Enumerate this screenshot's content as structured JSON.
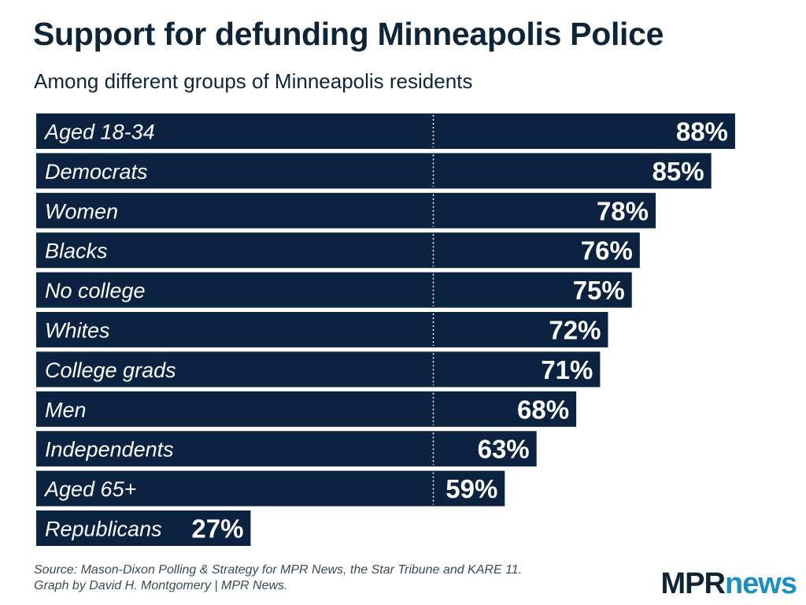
{
  "title": "Support for defunding Minneapolis Police",
  "subtitle": "Among different groups of Minneapolis residents",
  "chart_data": {
    "type": "bar",
    "orientation": "horizontal",
    "title": "Support for defunding Minneapolis Police",
    "subtitle": "Among different groups of Minneapolis residents",
    "categories": [
      "Aged 18-34",
      "Democrats",
      "Women",
      "Blacks",
      "No college",
      "Whites",
      "College grads",
      "Men",
      "Independents",
      "Aged 65+",
      "Republicans"
    ],
    "values": [
      88,
      85,
      78,
      76,
      75,
      72,
      71,
      68,
      63,
      59,
      27
    ],
    "labels": [
      "88%",
      "85%",
      "78%",
      "76%",
      "75%",
      "72%",
      "71%",
      "68%",
      "63%",
      "59%",
      "27%"
    ],
    "unit": "%",
    "xlim": [
      0,
      100
    ],
    "reference_line": 50,
    "colors": {
      "bar": "#0b2340",
      "text": "#ffffff"
    }
  },
  "source": {
    "line1": "Source: Mason-Dixon Polling & Strategy for MPR News, the Star Tribune and KARE 11.",
    "line2": "Graph by David H. Montgomery | MPR News."
  },
  "logo": {
    "part1": "MPR",
    "part2": "news"
  }
}
